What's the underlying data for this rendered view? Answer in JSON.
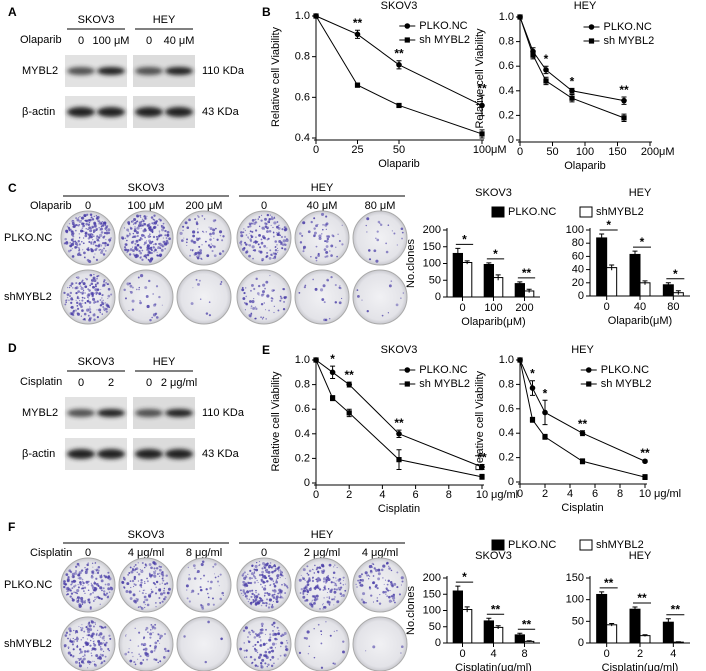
{
  "figure": {
    "panel_labels": [
      "A",
      "B",
      "C",
      "D",
      "E",
      "F"
    ],
    "blots": [
      {
        "treatment": "Olaparib",
        "cells": [
          {
            "name": "SKOV3",
            "doses": [
              "0",
              "100 μM"
            ]
          },
          {
            "name": "HEY",
            "doses": [
              "0",
              "40 μM"
            ]
          }
        ],
        "rows": [
          {
            "protein": "MYBL2",
            "size": "110 KDa"
          },
          {
            "protein": "β-actin",
            "size": "43 KDa"
          }
        ]
      },
      {
        "treatment": "Cisplatin",
        "cells": [
          {
            "name": "SKOV3",
            "doses": [
              "0",
              "2"
            ]
          },
          {
            "name": "HEY",
            "doses": [
              "0",
              "2 μg/ml"
            ]
          }
        ],
        "rows": [
          {
            "protein": "MYBL2",
            "size": "110 KDa"
          },
          {
            "protein": "β-actin",
            "size": "43 KDa"
          }
        ]
      }
    ],
    "colonies": [
      {
        "treatment": "Olaparib",
        "cells": [
          {
            "name": "SKOV3",
            "doses": [
              "0",
              "100 μM",
              "200 μM"
            ]
          },
          {
            "name": "HEY",
            "doses": [
              "0",
              "40 μM",
              "80 μM"
            ]
          }
        ],
        "rows": [
          "PLKO.NC",
          "shMYBL2"
        ]
      },
      {
        "treatment": "Cisplatin",
        "cells": [
          {
            "name": "SKOV3",
            "doses": [
              "0",
              "4 μg/ml",
              "8 μg/ml"
            ]
          },
          {
            "name": "HEY",
            "doses": [
              "0",
              "2 μg/ml",
              "4 μg/ml"
            ]
          }
        ],
        "rows": [
          "PLKO.NC",
          "shMYBL2"
        ]
      }
    ]
  },
  "chart_data": [
    {
      "type": "line",
      "title": "SKOV3",
      "xlabel": "Olaparib",
      "x_unit": "μM",
      "ylabel": "Relative cell Viability",
      "x": [
        0,
        25,
        50,
        100
      ],
      "xlim": [
        0,
        100
      ],
      "xticks": [
        0,
        25,
        50,
        100
      ],
      "ylim": [
        0.4,
        1.0
      ],
      "yticks": [
        0.4,
        0.6,
        0.8,
        {
          "value": 1.0,
          "label": "1.0"
        }
      ],
      "legend": "upper right",
      "series": [
        {
          "name": "PLKO.NC",
          "color": "#000000",
          "values": [
            1.0,
            0.91,
            0.76,
            0.56
          ],
          "errors": [
            0,
            0.02,
            0.02,
            0.05
          ]
        },
        {
          "name": "sh MYBL2",
          "color": "#000000",
          "values": [
            1.0,
            0.66,
            0.56,
            0.42
          ],
          "errors": [
            0,
            0.01,
            0.005,
            0.02
          ]
        }
      ],
      "significance": [
        null,
        "**",
        "**",
        "**"
      ]
    },
    {
      "type": "line",
      "title": "HEY",
      "xlabel": "Olaparib",
      "x_unit": "μM",
      "ylabel": "Relative cell Viability",
      "x": [
        0,
        20,
        40,
        80,
        160
      ],
      "xlim": [
        0,
        200
      ],
      "xticks": [
        0,
        50,
        100,
        150,
        200
      ],
      "ylim": [
        0,
        1.0
      ],
      "yticks": [
        0,
        0.2,
        0.4,
        0.6,
        0.8,
        {
          "value": 1.0,
          "label": "1.0"
        }
      ],
      "legend": "upper right",
      "series": [
        {
          "name": "PLKO.NC",
          "color": "#000000",
          "values": [
            1.0,
            0.72,
            0.57,
            0.4,
            0.32
          ],
          "errors": [
            0,
            0.03,
            0.03,
            0.02,
            0.03
          ]
        },
        {
          "name": "sh MYBL2",
          "color": "#000000",
          "values": [
            1.0,
            0.69,
            0.48,
            0.34,
            0.18
          ],
          "errors": [
            0,
            0.03,
            0.03,
            0.03,
            0.03
          ]
        }
      ],
      "significance": [
        null,
        null,
        "*",
        "*",
        "**"
      ]
    },
    {
      "type": "bar",
      "title": "SKOV3",
      "xlabel": "Olaparib(μM)",
      "ylabel": "No.clones",
      "categories": [
        "0",
        "100",
        "200"
      ],
      "ylim": [
        0,
        200
      ],
      "yticks": [
        0,
        50,
        100,
        150,
        200
      ],
      "series": [
        {
          "name": "PLKO.NC",
          "color": "#000000",
          "values": [
            130,
            97,
            40
          ],
          "errors": [
            15,
            5,
            5
          ]
        },
        {
          "name": "shMYBL2",
          "color": "#ffffff",
          "values": [
            103,
            58,
            18
          ],
          "errors": [
            5,
            8,
            5
          ]
        }
      ],
      "significance": [
        "*",
        "*",
        "**"
      ]
    },
    {
      "type": "bar",
      "title": "HEY",
      "xlabel": "Olaparib(μM)",
      "categories": [
        "0",
        "40",
        "80"
      ],
      "ylim": [
        0,
        100
      ],
      "yticks": [
        0,
        20,
        40,
        60,
        80,
        100
      ],
      "series": [
        {
          "color": "#000000",
          "values": [
            88,
            63,
            17
          ],
          "errors": [
            6,
            5,
            3
          ]
        },
        {
          "color": "#ffffff",
          "values": [
            43,
            20,
            5
          ],
          "errors": [
            4,
            3,
            3
          ]
        }
      ],
      "significance": [
        "*",
        "*",
        "*"
      ]
    },
    {
      "type": "line",
      "title": "SKOV3",
      "xlabel": "Cisplatin",
      "x_unit": "μg/ml",
      "ylabel": "Relative cell Viability",
      "x": [
        0,
        1,
        2,
        5,
        10
      ],
      "xlim": [
        0,
        10
      ],
      "xticks": [
        0,
        2,
        4,
        6,
        8,
        10
      ],
      "ylim": [
        0,
        1.0
      ],
      "yticks": [
        0,
        0.2,
        0.4,
        0.6,
        0.8,
        {
          "value": 1.0,
          "label": "1.0"
        }
      ],
      "legend": "upper right",
      "series": [
        {
          "name": "PLKO.NC",
          "color": "#000000",
          "values": [
            1.0,
            0.9,
            0.8,
            0.4,
            0.13
          ],
          "errors": [
            0,
            0.05,
            0.02,
            0.03,
            0.02
          ]
        },
        {
          "name": "sh MYBL2",
          "color": "#000000",
          "values": [
            1.0,
            0.69,
            0.57,
            0.19,
            0.05
          ],
          "errors": [
            0,
            0.02,
            0.03,
            0.08,
            0.02
          ]
        }
      ],
      "significance": [
        null,
        "*",
        "**",
        "**",
        "**"
      ]
    },
    {
      "type": "line",
      "title": "HEY",
      "xlabel": "Cisplatin",
      "x_unit": "μg/ml",
      "ylabel": "Relative cell Viability",
      "x": [
        0,
        1,
        2,
        5,
        10
      ],
      "xlim": [
        0,
        10
      ],
      "xticks": [
        0,
        2,
        4,
        6,
        8,
        10
      ],
      "ylim": [
        0,
        1.0
      ],
      "yticks": [
        0,
        0.2,
        0.4,
        0.6,
        0.8,
        {
          "value": 1.0,
          "label": "1.0"
        }
      ],
      "legend": "upper right",
      "series": [
        {
          "name": "PLKO.NC",
          "color": "#000000",
          "values": [
            1.0,
            0.77,
            0.57,
            0.4,
            0.17
          ],
          "errors": [
            0,
            0.06,
            0.1,
            0.02,
            0.01
          ]
        },
        {
          "name": "sh MYBL2",
          "color": "#000000",
          "values": [
            1.0,
            0.51,
            0.37,
            0.17,
            0.04
          ],
          "errors": [
            0,
            0.02,
            0.02,
            0.02,
            0.02
          ]
        }
      ],
      "significance": [
        null,
        "*",
        "*",
        "**",
        "**"
      ]
    },
    {
      "type": "bar",
      "title": "SKOV3",
      "xlabel": "Cisplatin(μg/ml)",
      "ylabel": "No.clones",
      "categories": [
        "0",
        "4",
        "8"
      ],
      "ylim": [
        0,
        200
      ],
      "yticks": [
        0,
        50,
        100,
        150,
        200
      ],
      "series": [
        {
          "name": "PLKO.NC",
          "color": "#000000",
          "values": [
            160,
            68,
            25
          ],
          "errors": [
            15,
            8,
            5
          ]
        },
        {
          "name": "shMYBL2",
          "color": "#ffffff",
          "values": [
            103,
            48,
            5
          ],
          "errors": [
            8,
            5,
            2
          ]
        }
      ],
      "significance": [
        "*",
        "**",
        "**"
      ]
    },
    {
      "type": "bar",
      "title": "HEY",
      "xlabel": "Cisplatin(μg/ml)",
      "categories": [
        "0",
        "2",
        "4"
      ],
      "ylim": [
        0,
        150
      ],
      "yticks": [
        0,
        50,
        100,
        150
      ],
      "series": [
        {
          "color": "#000000",
          "values": [
            112,
            78,
            48
          ],
          "errors": [
            6,
            5,
            8
          ]
        },
        {
          "color": "#ffffff",
          "values": [
            42,
            17,
            2
          ],
          "errors": [
            3,
            2,
            1
          ]
        }
      ],
      "significance": [
        "**",
        "**",
        "**"
      ]
    }
  ]
}
